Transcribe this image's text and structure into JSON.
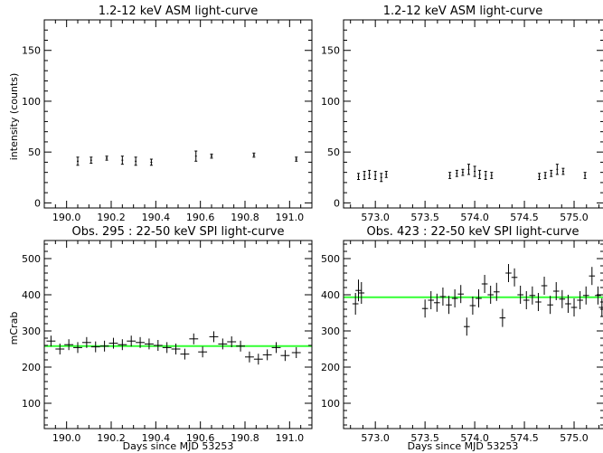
{
  "chart_data": [
    {
      "type": "scatter",
      "title": "1.2-12 keV ASM light-curve",
      "xlabel": "",
      "ylabel": "intensity (counts)",
      "xlim": [
        189.9,
        191.1
      ],
      "ylim": [
        -5,
        180
      ],
      "xticks": [
        190.0,
        190.2,
        190.4,
        190.6,
        190.8,
        191.0
      ],
      "xtick_labels": [
        "190.0",
        "190.2",
        "190.4",
        "190.6",
        "190.8",
        "191.0"
      ],
      "yticks": [
        0,
        50,
        100,
        150
      ],
      "ytick_labels": [
        "0",
        "50",
        "100",
        "150"
      ],
      "grid": false,
      "points": [
        {
          "x": 190.05,
          "y": 41,
          "err": 4
        },
        {
          "x": 190.11,
          "y": 42,
          "err": 3
        },
        {
          "x": 190.18,
          "y": 44,
          "err": 2
        },
        {
          "x": 190.25,
          "y": 42,
          "err": 4
        },
        {
          "x": 190.31,
          "y": 41,
          "err": 4
        },
        {
          "x": 190.38,
          "y": 40,
          "err": 3
        },
        {
          "x": 190.58,
          "y": 46,
          "err": 5
        },
        {
          "x": 190.65,
          "y": 46,
          "err": 2
        },
        {
          "x": 190.84,
          "y": 47,
          "err": 2
        },
        {
          "x": 191.03,
          "y": 43,
          "err": 2
        }
      ]
    },
    {
      "type": "scatter",
      "title": "1.2-12 keV ASM light-curve",
      "xlabel": "",
      "ylabel": "",
      "xlim": [
        572.68,
        575.3
      ],
      "ylim": [
        -5,
        180
      ],
      "xticks": [
        573.0,
        573.5,
        574.0,
        574.5,
        575.0
      ],
      "xtick_labels": [
        "573.0",
        "573.5",
        "574.0",
        "574.5",
        "575.0"
      ],
      "yticks": [
        0,
        50,
        100,
        150
      ],
      "ytick_labels": [
        "0",
        "50",
        "100",
        "150"
      ],
      "grid": false,
      "points": [
        {
          "x": 572.83,
          "y": 26,
          "err": 3
        },
        {
          "x": 572.89,
          "y": 27,
          "err": 4
        },
        {
          "x": 572.94,
          "y": 28,
          "err": 4
        },
        {
          "x": 573.0,
          "y": 27,
          "err": 4
        },
        {
          "x": 573.06,
          "y": 25,
          "err": 4
        },
        {
          "x": 573.11,
          "y": 28,
          "err": 3
        },
        {
          "x": 573.75,
          "y": 27,
          "err": 3
        },
        {
          "x": 573.82,
          "y": 29,
          "err": 3
        },
        {
          "x": 573.88,
          "y": 30,
          "err": 3
        },
        {
          "x": 573.94,
          "y": 33,
          "err": 5
        },
        {
          "x": 574.0,
          "y": 31,
          "err": 5
        },
        {
          "x": 574.05,
          "y": 28,
          "err": 4
        },
        {
          "x": 574.11,
          "y": 27,
          "err": 4
        },
        {
          "x": 574.17,
          "y": 27,
          "err": 3
        },
        {
          "x": 574.65,
          "y": 26,
          "err": 3
        },
        {
          "x": 574.71,
          "y": 27,
          "err": 3
        },
        {
          "x": 574.77,
          "y": 29,
          "err": 3
        },
        {
          "x": 574.83,
          "y": 33,
          "err": 5
        },
        {
          "x": 574.89,
          "y": 31,
          "err": 3
        },
        {
          "x": 575.11,
          "y": 27,
          "err": 3
        }
      ]
    },
    {
      "type": "scatter",
      "title": "Obs. 295 : 22-50 keV SPI light-curve",
      "xlabel": "Days since MJD 53253",
      "ylabel": "mCrab",
      "xlim": [
        189.9,
        191.1
      ],
      "ylim": [
        30,
        550
      ],
      "xticks": [
        190.0,
        190.2,
        190.4,
        190.6,
        190.8,
        191.0
      ],
      "xtick_labels": [
        "190.0",
        "190.2",
        "190.4",
        "190.6",
        "190.8",
        "191.0"
      ],
      "yticks": [
        100,
        200,
        300,
        400,
        500
      ],
      "ytick_labels": [
        "100",
        "200",
        "300",
        "400",
        "500"
      ],
      "grid": false,
      "fit_level": 258,
      "points": [
        {
          "x": 189.93,
          "y": 272,
          "xerr": 0.02,
          "err": 15
        },
        {
          "x": 189.97,
          "y": 250,
          "xerr": 0.02,
          "err": 15
        },
        {
          "x": 190.01,
          "y": 262,
          "xerr": 0.02,
          "err": 15
        },
        {
          "x": 190.05,
          "y": 254,
          "xerr": 0.02,
          "err": 15
        },
        {
          "x": 190.09,
          "y": 268,
          "xerr": 0.02,
          "err": 15
        },
        {
          "x": 190.13,
          "y": 256,
          "xerr": 0.02,
          "err": 15
        },
        {
          "x": 190.17,
          "y": 258,
          "xerr": 0.02,
          "err": 15
        },
        {
          "x": 190.21,
          "y": 266,
          "xerr": 0.02,
          "err": 15
        },
        {
          "x": 190.25,
          "y": 262,
          "xerr": 0.02,
          "err": 15
        },
        {
          "x": 190.29,
          "y": 272,
          "xerr": 0.02,
          "err": 15
        },
        {
          "x": 190.33,
          "y": 268,
          "xerr": 0.02,
          "err": 15
        },
        {
          "x": 190.37,
          "y": 264,
          "xerr": 0.02,
          "err": 15
        },
        {
          "x": 190.41,
          "y": 260,
          "xerr": 0.02,
          "err": 15
        },
        {
          "x": 190.45,
          "y": 254,
          "xerr": 0.02,
          "err": 15
        },
        {
          "x": 190.49,
          "y": 250,
          "xerr": 0.02,
          "err": 15
        },
        {
          "x": 190.53,
          "y": 236,
          "xerr": 0.02,
          "err": 15
        },
        {
          "x": 190.57,
          "y": 278,
          "xerr": 0.02,
          "err": 15
        },
        {
          "x": 190.61,
          "y": 242,
          "xerr": 0.02,
          "err": 15
        },
        {
          "x": 190.66,
          "y": 284,
          "xerr": 0.02,
          "err": 15
        },
        {
          "x": 190.7,
          "y": 264,
          "xerr": 0.02,
          "err": 15
        },
        {
          "x": 190.74,
          "y": 270,
          "xerr": 0.02,
          "err": 15
        },
        {
          "x": 190.78,
          "y": 258,
          "xerr": 0.02,
          "err": 15
        },
        {
          "x": 190.82,
          "y": 228,
          "xerr": 0.02,
          "err": 15
        },
        {
          "x": 190.86,
          "y": 222,
          "xerr": 0.02,
          "err": 15
        },
        {
          "x": 190.9,
          "y": 234,
          "xerr": 0.02,
          "err": 15
        },
        {
          "x": 190.94,
          "y": 254,
          "xerr": 0.02,
          "err": 15
        },
        {
          "x": 190.98,
          "y": 232,
          "xerr": 0.02,
          "err": 15
        },
        {
          "x": 191.03,
          "y": 240,
          "xerr": 0.02,
          "err": 15
        }
      ]
    },
    {
      "type": "scatter",
      "title": "Obs. 423 : 22-50 keV SPI light-curve",
      "xlabel": "Days since MJD 53253",
      "ylabel": "",
      "xlim": [
        572.68,
        575.3
      ],
      "ylim": [
        30,
        550
      ],
      "xticks": [
        573.0,
        573.5,
        574.0,
        574.5,
        575.0
      ],
      "xtick_labels": [
        "573.0",
        "573.5",
        "574.0",
        "574.5",
        "575.0"
      ],
      "yticks": [
        100,
        200,
        300,
        400,
        500
      ],
      "ytick_labels": [
        "100",
        "200",
        "300",
        "400",
        "500"
      ],
      "grid": false,
      "fit_level": 393,
      "points": [
        {
          "x": 572.8,
          "y": 375,
          "xerr": 0.03,
          "err": 30
        },
        {
          "x": 572.83,
          "y": 412,
          "xerr": 0.03,
          "err": 30
        },
        {
          "x": 572.86,
          "y": 405,
          "xerr": 0.03,
          "err": 30
        },
        {
          "x": 573.5,
          "y": 362,
          "xerr": 0.03,
          "err": 25
        },
        {
          "x": 573.56,
          "y": 385,
          "xerr": 0.03,
          "err": 25
        },
        {
          "x": 573.62,
          "y": 378,
          "xerr": 0.03,
          "err": 25
        },
        {
          "x": 573.68,
          "y": 395,
          "xerr": 0.03,
          "err": 25
        },
        {
          "x": 573.74,
          "y": 372,
          "xerr": 0.03,
          "err": 25
        },
        {
          "x": 573.8,
          "y": 390,
          "xerr": 0.03,
          "err": 25
        },
        {
          "x": 573.86,
          "y": 402,
          "xerr": 0.03,
          "err": 25
        },
        {
          "x": 573.92,
          "y": 312,
          "xerr": 0.03,
          "err": 25
        },
        {
          "x": 573.98,
          "y": 370,
          "xerr": 0.03,
          "err": 25
        },
        {
          "x": 574.04,
          "y": 390,
          "xerr": 0.03,
          "err": 25
        },
        {
          "x": 574.1,
          "y": 430,
          "xerr": 0.03,
          "err": 25
        },
        {
          "x": 574.16,
          "y": 400,
          "xerr": 0.03,
          "err": 25
        },
        {
          "x": 574.22,
          "y": 408,
          "xerr": 0.03,
          "err": 25
        },
        {
          "x": 574.28,
          "y": 336,
          "xerr": 0.03,
          "err": 25
        },
        {
          "x": 574.34,
          "y": 460,
          "xerr": 0.03,
          "err": 25
        },
        {
          "x": 574.4,
          "y": 448,
          "xerr": 0.03,
          "err": 25
        },
        {
          "x": 574.46,
          "y": 400,
          "xerr": 0.03,
          "err": 25
        },
        {
          "x": 574.52,
          "y": 385,
          "xerr": 0.03,
          "err": 25
        },
        {
          "x": 574.58,
          "y": 398,
          "xerr": 0.03,
          "err": 25
        },
        {
          "x": 574.64,
          "y": 380,
          "xerr": 0.03,
          "err": 25
        },
        {
          "x": 574.7,
          "y": 425,
          "xerr": 0.03,
          "err": 25
        },
        {
          "x": 574.76,
          "y": 372,
          "xerr": 0.03,
          "err": 25
        },
        {
          "x": 574.82,
          "y": 410,
          "xerr": 0.03,
          "err": 25
        },
        {
          "x": 574.88,
          "y": 388,
          "xerr": 0.03,
          "err": 25
        },
        {
          "x": 574.94,
          "y": 375,
          "xerr": 0.03,
          "err": 25
        },
        {
          "x": 575.0,
          "y": 365,
          "xerr": 0.03,
          "err": 25
        },
        {
          "x": 575.06,
          "y": 385,
          "xerr": 0.03,
          "err": 25
        },
        {
          "x": 575.12,
          "y": 398,
          "xerr": 0.03,
          "err": 25
        },
        {
          "x": 575.18,
          "y": 452,
          "xerr": 0.03,
          "err": 25
        },
        {
          "x": 575.24,
          "y": 398,
          "xerr": 0.03,
          "err": 25
        },
        {
          "x": 575.28,
          "y": 365,
          "xerr": 0.03,
          "err": 25
        }
      ]
    }
  ]
}
